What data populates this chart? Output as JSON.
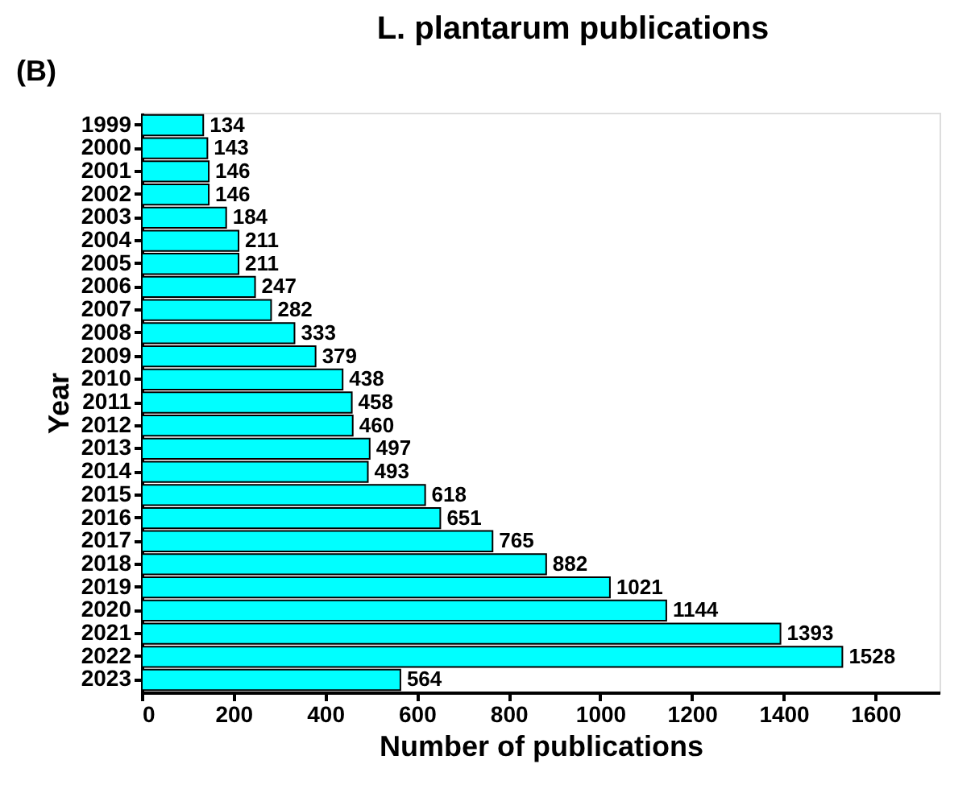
{
  "chart_data": {
    "type": "bar",
    "orientation": "horizontal",
    "title": "L. plantarum publications",
    "xlabel": "Number of publications",
    "ylabel": "Year",
    "categories": [
      "1999",
      "2000",
      "2001",
      "2002",
      "2003",
      "2004",
      "2005",
      "2006",
      "2007",
      "2008",
      "2009",
      "2010",
      "2011",
      "2012",
      "2013",
      "2014",
      "2015",
      "2016",
      "2017",
      "2018",
      "2019",
      "2020",
      "2021",
      "2022",
      "2023"
    ],
    "values": [
      134,
      143,
      146,
      146,
      184,
      211,
      211,
      247,
      282,
      333,
      379,
      438,
      458,
      460,
      497,
      493,
      618,
      651,
      765,
      882,
      1021,
      1144,
      1393,
      1528,
      564
    ],
    "color": "#00ffff",
    "xlim": [
      0,
      1740
    ],
    "xticks": [
      0,
      200,
      400,
      600,
      800,
      1000,
      1200,
      1400,
      1600
    ],
    "data_labels": true,
    "annotations": [
      "(B)"
    ]
  }
}
